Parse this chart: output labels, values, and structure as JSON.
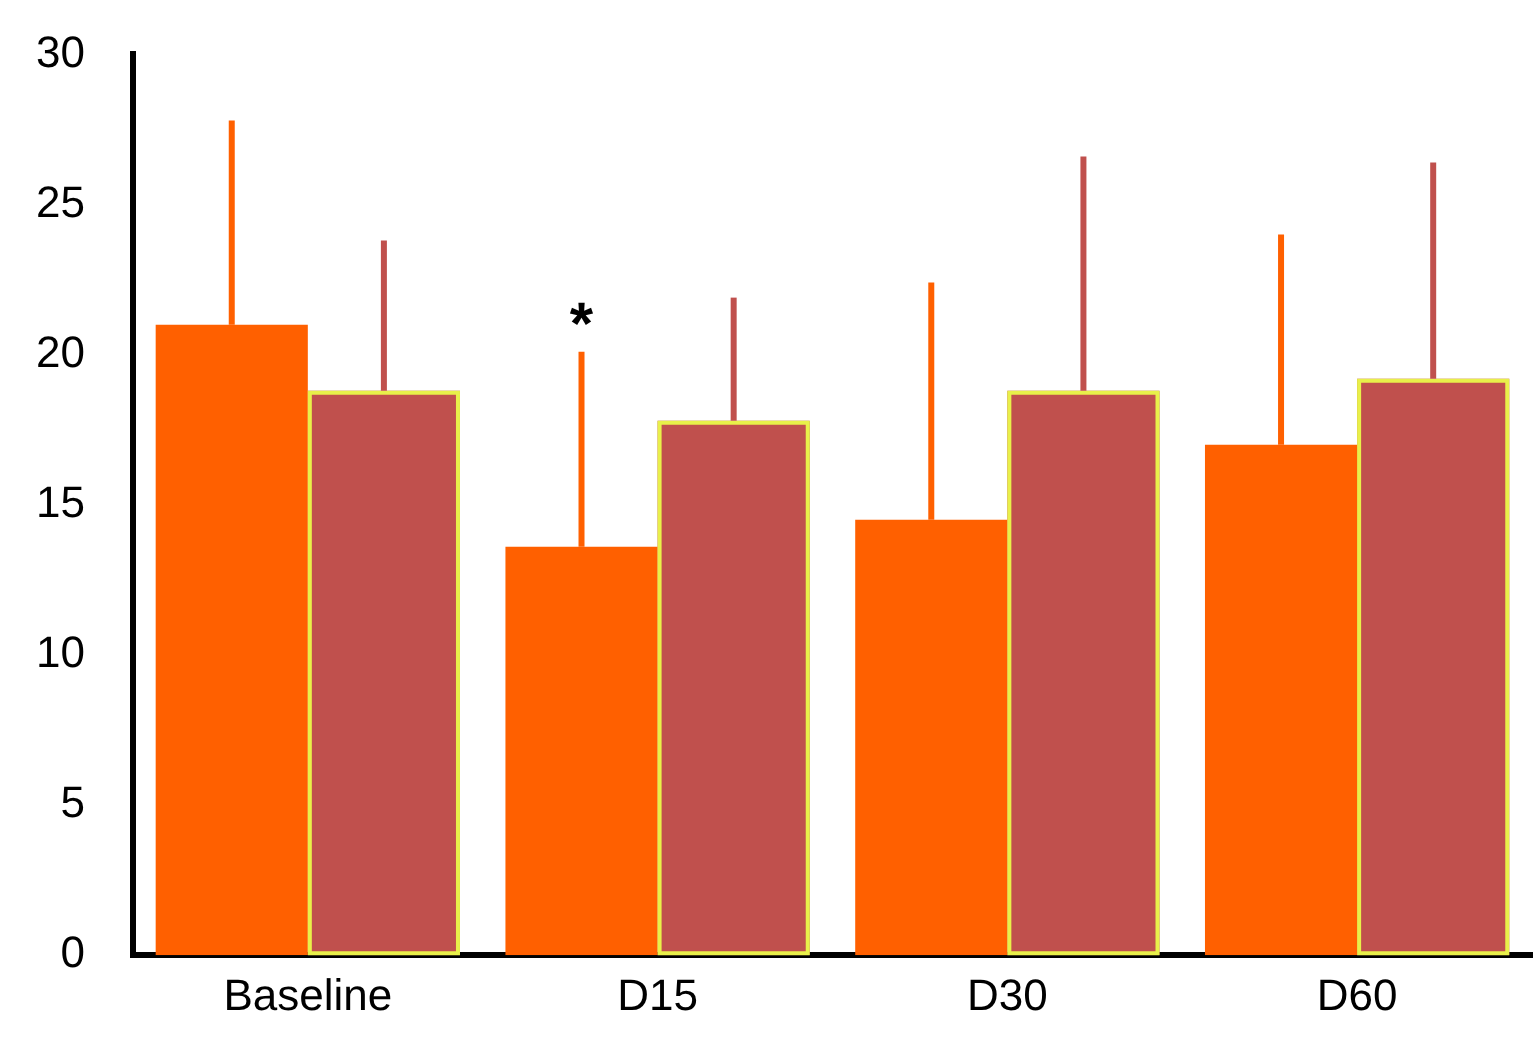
{
  "chart_data": {
    "type": "bar",
    "categories": [
      "Baseline",
      "D15",
      "D30",
      "D60"
    ],
    "series": [
      {
        "color": "#ff6000",
        "values": [
          21,
          13.6,
          14.5,
          17
        ],
        "errors": [
          [
            21,
            27.8
          ],
          [
            13.6,
            20.1
          ],
          [
            14.5,
            22.4
          ],
          [
            17,
            24
          ]
        ]
      },
      {
        "color": "#c0504d",
        "values": [
          18.8,
          17.8,
          18.8,
          19.2
        ],
        "errors": [
          [
            18.8,
            23.8
          ],
          [
            17.8,
            21.9
          ],
          [
            18.8,
            26.6
          ],
          [
            19.2,
            26.4
          ]
        ]
      }
    ],
    "ylim": [
      0,
      30
    ],
    "yticks": [
      0,
      5,
      10,
      15,
      20,
      25,
      30
    ],
    "grid": false,
    "legend": false,
    "annotations": [
      "*"
    ]
  }
}
